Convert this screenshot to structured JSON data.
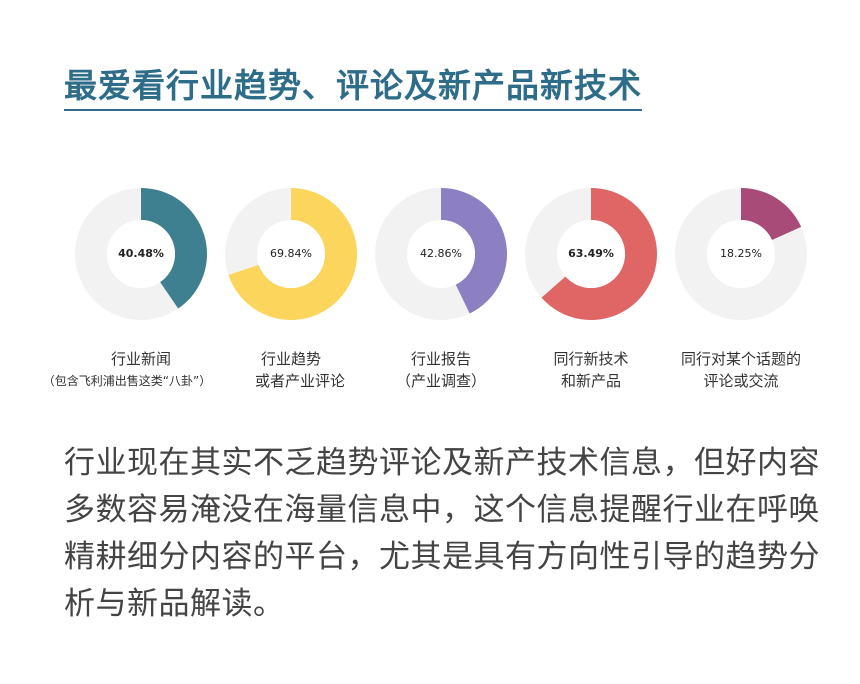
{
  "title": "最爱看行业趋势、评论及新产品新技术",
  "chart_data": {
    "type": "pie",
    "charts": [
      {
        "value": 40.48,
        "label": "40.48%",
        "color": "#3f8090",
        "category_line1": "行业新闻",
        "category_line2": "（包含飞利浦出售这类“八卦”）",
        "bold": true
      },
      {
        "value": 69.84,
        "label": "69.84%",
        "color": "#fcd65c",
        "category_line1": "行业趋势",
        "category_line2": "或者产业评论",
        "bold": false
      },
      {
        "value": 42.86,
        "label": "42.86%",
        "color": "#8c7fc2",
        "category_line1": "行业报告",
        "category_line2": "（产业调查）",
        "bold": false
      },
      {
        "value": 63.49,
        "label": "63.49%",
        "color": "#e06666",
        "category_line1": "同行新技术",
        "category_line2": "和新产品",
        "bold": true
      },
      {
        "value": 18.25,
        "label": "18.25%",
        "color": "#a84b79",
        "category_line1": "同行对某个话题的",
        "category_line2": "评论或交流",
        "bold": false
      }
    ],
    "ring_background": "#f2f2f2"
  },
  "body": "行业现在其实不乏趋势评论及新产技术信息，但好内容多数容易淹没在海量信息中，这个信息提醒行业在呼唤精耕细分内容的平台，尤其是具有方向性引导的趋势分析与新品解读。"
}
